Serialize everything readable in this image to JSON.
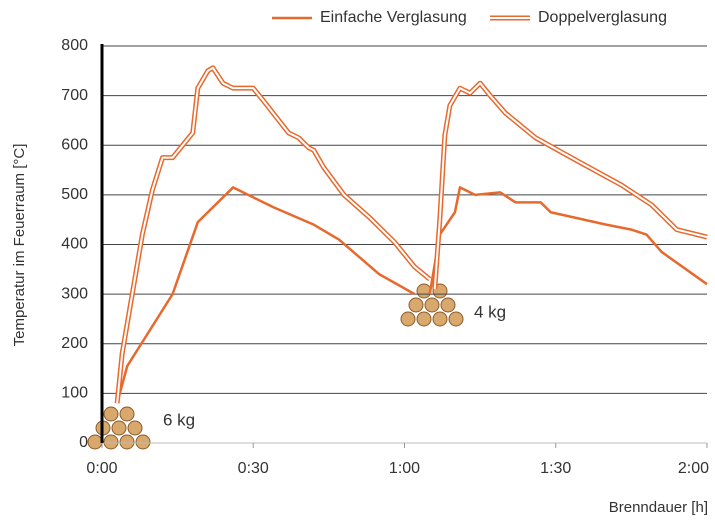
{
  "chart_data": {
    "type": "line",
    "y_label": "Temperatur im Feuerraum [°C]",
    "x_label": "Brenndauer [h]",
    "xlim": [
      0,
      120
    ],
    "xticks": [
      {
        "value": 0,
        "label": "0:00"
      },
      {
        "value": 30,
        "label": "0:30"
      },
      {
        "value": 60,
        "label": "1:00"
      },
      {
        "value": 90,
        "label": "1:30"
      },
      {
        "value": 120,
        "label": "2:00"
      }
    ],
    "ylim": [
      0,
      800
    ],
    "yticks": [
      0,
      100,
      200,
      300,
      400,
      500,
      600,
      700,
      800
    ],
    "grid": true,
    "legend": "top",
    "annotations": [
      "6 kg",
      "4 kg"
    ],
    "series": [
      {
        "name": "Einfache Verglasung",
        "color": "#e8692d",
        "style": "single",
        "x": [
          3,
          5,
          14,
          19,
          26,
          34,
          42,
          47,
          55,
          62,
          null,
          65,
          67,
          70,
          71,
          74,
          79,
          82,
          87,
          89,
          100,
          105,
          108,
          111,
          120
        ],
        "values": [
          80,
          155,
          300,
          445,
          515,
          475,
          440,
          410,
          340,
          300,
          null,
          300,
          420,
          465,
          515,
          500,
          505,
          485,
          485,
          465,
          440,
          430,
          420,
          385,
          320
        ]
      },
      {
        "name": "Doppelverglasung",
        "color": "#e8692d",
        "style": "double",
        "x": [
          3,
          4,
          6,
          8,
          10,
          12,
          14,
          16,
          18,
          19,
          21,
          22,
          24,
          26,
          30,
          32,
          37,
          39,
          41,
          42,
          44,
          48,
          53,
          58,
          62,
          65,
          null,
          66,
          67,
          68,
          69,
          71,
          73,
          75,
          77,
          80,
          86,
          94,
          103,
          109,
          114,
          120
        ],
        "values": [
          80,
          180,
          300,
          420,
          510,
          575,
          575,
          600,
          625,
          715,
          750,
          756,
          725,
          715,
          715,
          690,
          625,
          615,
          595,
          590,
          555,
          500,
          455,
          405,
          355,
          330,
          null,
          310,
          450,
          620,
          680,
          715,
          705,
          725,
          700,
          665,
          615,
          570,
          520,
          480,
          430,
          415
        ]
      }
    ]
  }
}
